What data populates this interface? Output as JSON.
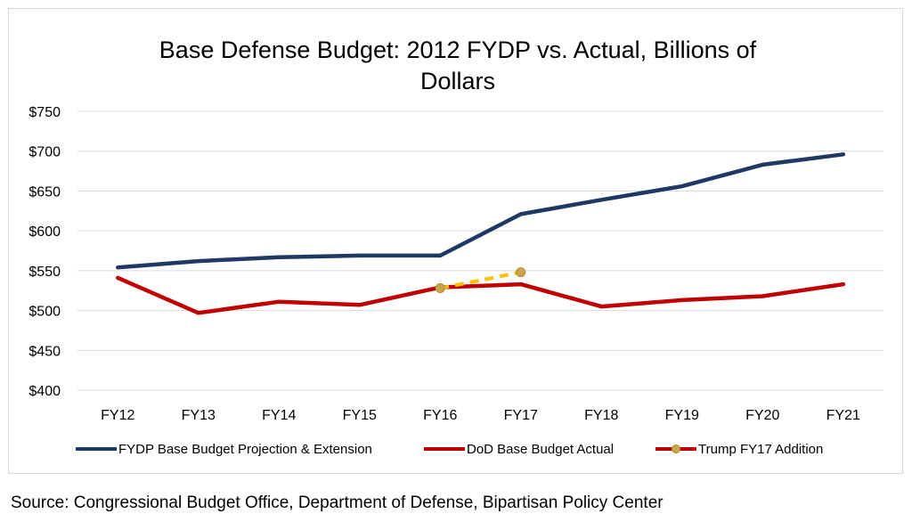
{
  "chart_data": {
    "type": "line",
    "title_lines": [
      "Base Defense Budget: 2012 FYDP vs. Actual, Billions of",
      "Dollars"
    ],
    "categories": [
      "FY12",
      "FY13",
      "FY14",
      "FY15",
      "FY16",
      "FY17",
      "FY18",
      "FY19",
      "FY20",
      "FY21"
    ],
    "ylim": [
      400,
      750
    ],
    "yticks": [
      400,
      450,
      500,
      550,
      600,
      650,
      700,
      750
    ],
    "ytick_labels": [
      "$400",
      "$450",
      "$500",
      "$550",
      "$600",
      "$650",
      "$700",
      "$750"
    ],
    "grid": true,
    "legend_position": "bottom",
    "series": [
      {
        "name": "FYDP Base Budget Projection & Extension",
        "color": "#1f3864",
        "style": "solid",
        "values": [
          554,
          562,
          567,
          569,
          569,
          621,
          639,
          656,
          683,
          696
        ]
      },
      {
        "name": "DoD Base Budget Actual",
        "color": "#c00000",
        "style": "solid",
        "values": [
          541,
          497,
          511,
          507,
          529,
          533,
          505,
          513,
          518,
          533
        ]
      },
      {
        "name": "Trump FY17 Addition",
        "color": "#ffc000",
        "marker_color": "#c9a54e",
        "style": "dashed",
        "values": [
          null,
          null,
          null,
          null,
          528,
          548,
          null,
          null,
          null,
          null
        ]
      }
    ]
  },
  "source": "Source: Congressional Budget Office, Department of Defense, Bipartisan Policy Center"
}
